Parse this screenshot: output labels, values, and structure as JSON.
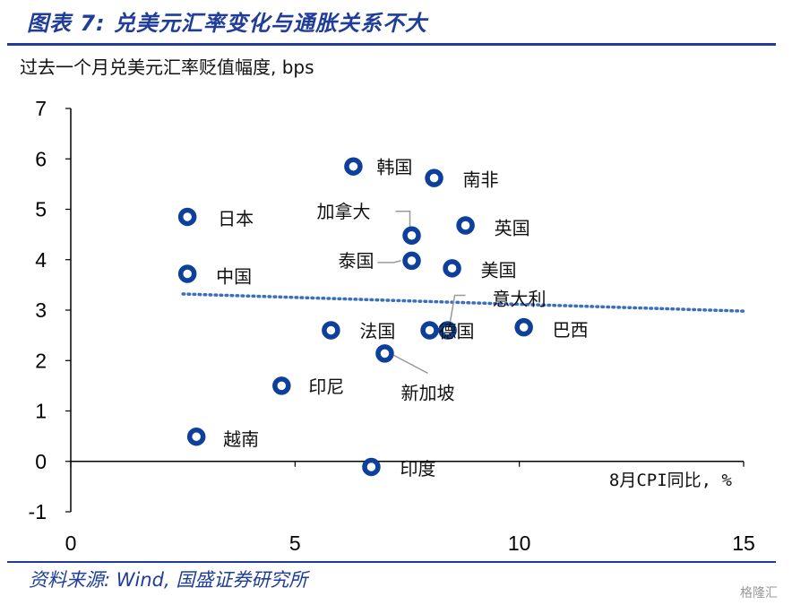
{
  "header": {
    "title": "图表 7:  兑美元汇率变化与通胀关系不大",
    "source": "资料来源:  Wind,  国盛证券研究所",
    "watermark": "格隆汇"
  },
  "colors": {
    "marker": "#0d3f9c",
    "title": "#1f3d99",
    "trend": "#3a6fc0",
    "leader": "#999999"
  },
  "chart_data": {
    "type": "scatter",
    "ylabel": "过去一个月兑美元汇率贬值幅度, bps",
    "xlabel": "8月CPI同比, %",
    "xlim": [
      0,
      15
    ],
    "ylim": [
      -1,
      7
    ],
    "x_ticks": [
      "0",
      "5",
      "10",
      "15"
    ],
    "y_ticks": [
      "7",
      "6",
      "5",
      "4",
      "3",
      "2",
      "1",
      "0",
      "-1"
    ],
    "grid": false,
    "legend": "none",
    "points": [
      {
        "name": "韩国",
        "x": 6.3,
        "y": 5.85
      },
      {
        "name": "南非",
        "x": 8.1,
        "y": 5.62
      },
      {
        "name": "日本",
        "x": 2.6,
        "y": 4.85
      },
      {
        "name": "英国",
        "x": 8.8,
        "y": 4.68
      },
      {
        "name": "加拿大",
        "x": 7.6,
        "y": 4.48
      },
      {
        "name": "泰国",
        "x": 7.6,
        "y": 3.98
      },
      {
        "name": "美国",
        "x": 8.5,
        "y": 3.83
      },
      {
        "name": "中国",
        "x": 2.6,
        "y": 3.72
      },
      {
        "name": "巴西",
        "x": 10.1,
        "y": 2.66
      },
      {
        "name": "法国",
        "x": 5.8,
        "y": 2.6
      },
      {
        "name": "德国",
        "x": 8.0,
        "y": 2.6
      },
      {
        "name": "意大利",
        "x": 8.4,
        "y": 2.6
      },
      {
        "name": "新加坡",
        "x": 7.0,
        "y": 2.14
      },
      {
        "name": "印尼",
        "x": 4.7,
        "y": 1.5
      },
      {
        "name": "越南",
        "x": 2.8,
        "y": 0.49
      },
      {
        "name": "印度",
        "x": 6.7,
        "y": -0.11
      }
    ],
    "trendline": {
      "x": [
        2.5,
        15
      ],
      "y": [
        3.32,
        2.98
      ]
    }
  }
}
